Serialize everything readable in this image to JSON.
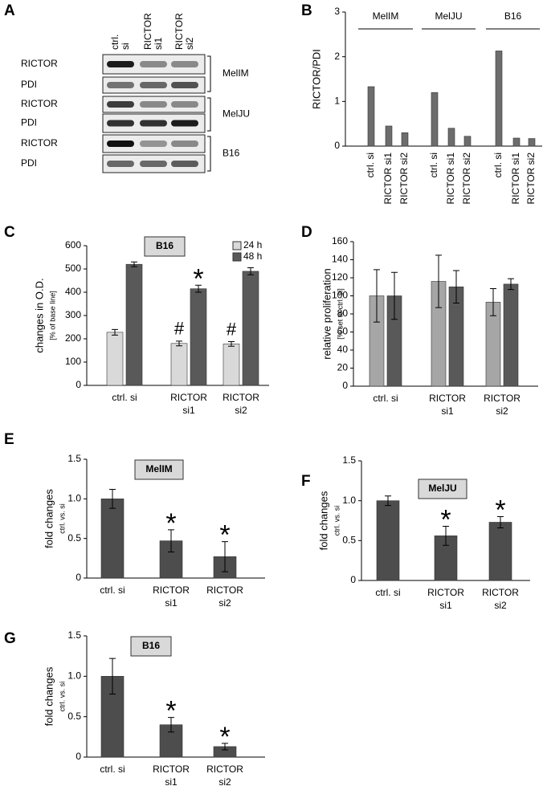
{
  "blot": {
    "panel_label": "A",
    "lanes": [
      [
        "ctrl.",
        "si"
      ],
      [
        "RICTOR",
        "si1"
      ],
      [
        "RICTOR",
        "si2"
      ]
    ],
    "groups": [
      {
        "name": "MelIM",
        "rows": [
          "RICTOR",
          "PDI"
        ]
      },
      {
        "name": "MelJU",
        "rows": [
          "RICTOR",
          "PDI"
        ]
      },
      {
        "name": "B16",
        "rows": [
          "RICTOR",
          "PDI"
        ]
      }
    ]
  },
  "chart_data": [
    {
      "type": "bar",
      "panel_label": "B",
      "ylabel": "RICTOR/PDI",
      "categories": [
        "ctrl. si",
        "RICTOR si1",
        "RICTOR si2",
        "ctrl. si",
        "RICTOR si1",
        "RICTOR si2",
        "ctrl. si",
        "RICTOR si1",
        "RICTOR si2"
      ],
      "groups": [
        "MelIM",
        "MelJU",
        "B16"
      ],
      "values": [
        1.33,
        0.45,
        0.3,
        1.2,
        0.4,
        0.22,
        2.13,
        0.18,
        0.17
      ],
      "color": "#6d6d6d",
      "ylim": [
        0,
        3
      ],
      "yticks": [
        0,
        1,
        2,
        3
      ]
    },
    {
      "type": "bar",
      "panel_label": "C",
      "label": "B16",
      "ylabel": "changes in O.D.",
      "ylabel_sub": "[% of base line]",
      "categories": [
        [
          "ctrl. si"
        ],
        [
          "RICTOR",
          "si1"
        ],
        [
          "RICTOR",
          "si2"
        ]
      ],
      "series": [
        {
          "name": "24 h",
          "color": "#d9d9d9",
          "values": [
            228,
            180,
            178
          ],
          "errors": [
            12,
            10,
            10
          ],
          "markers": [
            null,
            "#",
            "#"
          ]
        },
        {
          "name": "48 h",
          "color": "#595959",
          "values": [
            520,
            415,
            490
          ],
          "errors": [
            10,
            15,
            15
          ],
          "markers": [
            null,
            "*",
            null
          ]
        }
      ],
      "ylim": [
        0,
        600
      ],
      "yticks": [
        0,
        100,
        200,
        300,
        400,
        500,
        600
      ]
    },
    {
      "type": "bar",
      "panel_label": "D",
      "ylabel": "relative proliferation",
      "ylabel_sub": "[% set to ctrl. si]",
      "categories": [
        [
          "ctrl. si"
        ],
        [
          "RICTOR",
          "si1"
        ],
        [
          "RICTOR",
          "si2"
        ]
      ],
      "series": [
        {
          "color": "#a6a6a6",
          "values": [
            100,
            116,
            93
          ],
          "errors": [
            29,
            29,
            15
          ]
        },
        {
          "color": "#595959",
          "values": [
            100,
            110,
            113
          ],
          "errors": [
            26,
            18,
            6
          ]
        }
      ],
      "ylim": [
        0,
        160
      ],
      "yticks": [
        0,
        20,
        40,
        60,
        80,
        100,
        120,
        140,
        160
      ]
    },
    {
      "type": "bar",
      "panel_label": "E",
      "label": "MelIM",
      "ylabel": "fold changes",
      "ylabel_sub": "ctrl. vs. si",
      "categories": [
        [
          "ctrl. si"
        ],
        [
          "RICTOR",
          "si1"
        ],
        [
          "RICTOR",
          "si2"
        ]
      ],
      "series": [
        {
          "color": "#4d4d4d",
          "values": [
            1.0,
            0.47,
            0.27
          ],
          "errors": [
            0.12,
            0.14,
            0.19
          ],
          "markers": [
            null,
            "*",
            "*"
          ]
        }
      ],
      "ylim": [
        0,
        1.5
      ],
      "yticks": [
        0,
        0.5,
        {
          "value": 1,
          "label": "1.0"
        },
        1.5
      ]
    },
    {
      "type": "bar",
      "panel_label": "F",
      "label": "MelJU",
      "ylabel": "fold changes",
      "ylabel_sub": "ctrl. vs. si",
      "categories": [
        [
          "ctrl. si"
        ],
        [
          "RICTOR",
          "si1"
        ],
        [
          "RICTOR",
          "si2"
        ]
      ],
      "series": [
        {
          "color": "#4d4d4d",
          "values": [
            1.0,
            0.56,
            0.73
          ],
          "errors": [
            0.06,
            0.12,
            0.07
          ],
          "markers": [
            null,
            "*",
            "*"
          ]
        }
      ],
      "ylim": [
        0,
        1.5
      ],
      "yticks": [
        0,
        0.5,
        {
          "value": 1,
          "label": "1.0"
        },
        1.5
      ]
    },
    {
      "type": "bar",
      "panel_label": "G",
      "label": "B16",
      "ylabel": "fold changes",
      "ylabel_sub": "ctrl. vs. si",
      "categories": [
        [
          "ctrl. si"
        ],
        [
          "RICTOR",
          "si1"
        ],
        [
          "RICTOR",
          "si2"
        ]
      ],
      "series": [
        {
          "color": "#4d4d4d",
          "values": [
            1.0,
            0.4,
            0.13
          ],
          "errors": [
            0.22,
            0.09,
            0.04
          ],
          "markers": [
            null,
            "*",
            "*"
          ]
        }
      ],
      "ylim": [
        0,
        1.5
      ],
      "yticks": [
        0,
        0.5,
        {
          "value": 1,
          "label": "1.0"
        },
        1.5
      ]
    }
  ]
}
